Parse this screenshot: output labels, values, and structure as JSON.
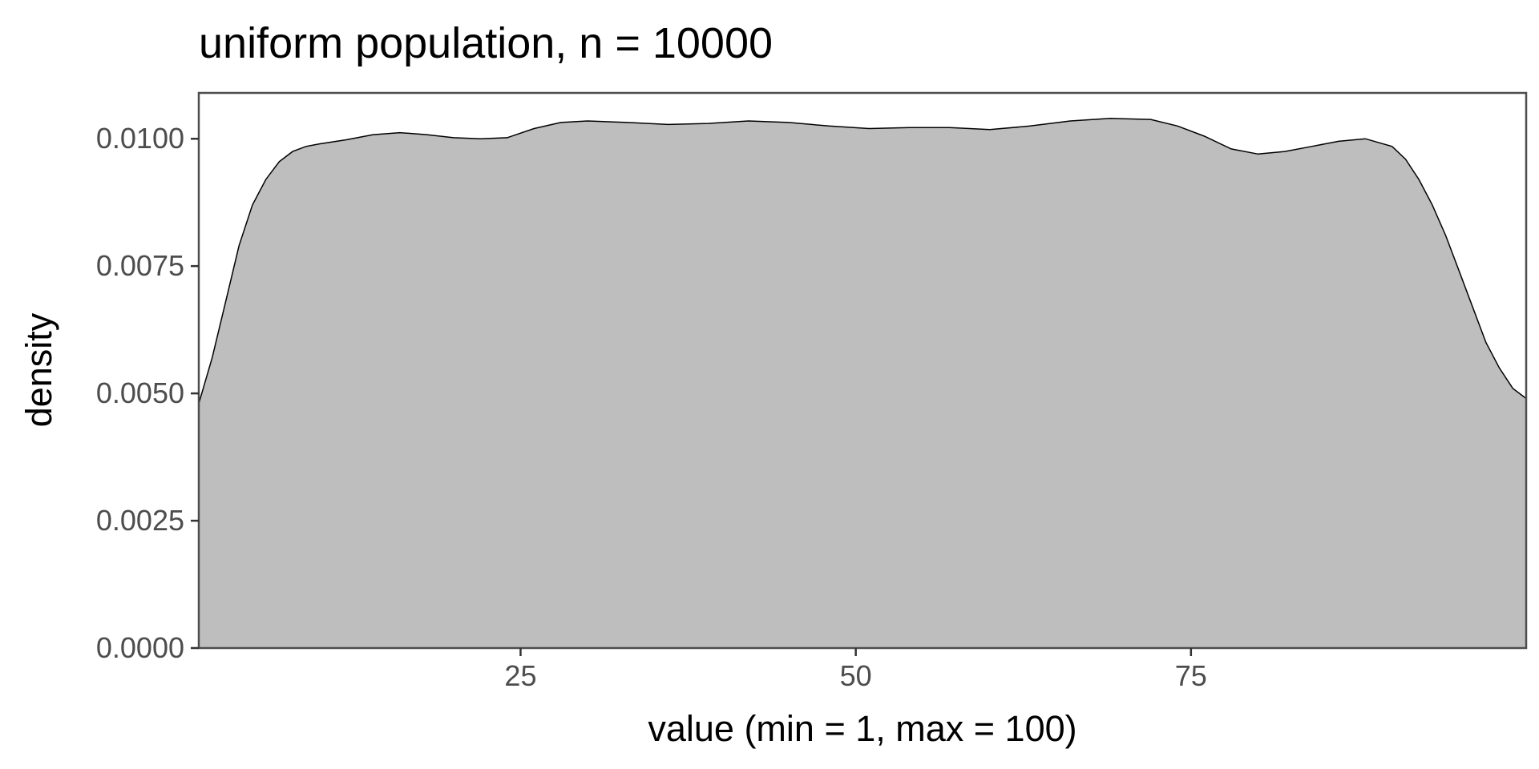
{
  "chart_data": {
    "type": "area",
    "title": "uniform population, n = 10000",
    "xlabel": "value (min = 1, max = 100)",
    "ylabel": "density",
    "xlim": [
      1,
      100
    ],
    "ylim": [
      0,
      0.0109
    ],
    "x_ticks": [
      25,
      50,
      75
    ],
    "x_tick_labels": [
      "25",
      "50",
      "75"
    ],
    "y_ticks": [
      0,
      0.0025,
      0.005,
      0.0075,
      0.01
    ],
    "y_tick_labels": [
      "0.0000",
      "0.0025",
      "0.0050",
      "0.0075",
      "0.0100"
    ],
    "grid": false,
    "legend": "none",
    "fill_color": "#bebebe",
    "line_color": "#000000",
    "series": [
      {
        "x": [
          1,
          2,
          3,
          4,
          5,
          6,
          7,
          8,
          9,
          10,
          12,
          14,
          16,
          18,
          20,
          22,
          24,
          26,
          28,
          30,
          33,
          36,
          39,
          42,
          45,
          48,
          51,
          54,
          57,
          60,
          63,
          66,
          69,
          72,
          74,
          76,
          78,
          80,
          82,
          84,
          86,
          88,
          90,
          91,
          92,
          93,
          94,
          95,
          96,
          97,
          98,
          99,
          100
        ],
        "values": [
          0.0048,
          0.0057,
          0.0068,
          0.0079,
          0.0087,
          0.0092,
          0.00955,
          0.00975,
          0.00985,
          0.0099,
          0.00998,
          0.01008,
          0.01012,
          0.01008,
          0.01002,
          0.01,
          0.01002,
          0.0102,
          0.01032,
          0.01035,
          0.01032,
          0.01028,
          0.0103,
          0.01035,
          0.01032,
          0.01025,
          0.0102,
          0.01022,
          0.01022,
          0.01018,
          0.01025,
          0.01035,
          0.0104,
          0.01038,
          0.01025,
          0.01005,
          0.0098,
          0.0097,
          0.00975,
          0.00985,
          0.00995,
          0.01,
          0.00985,
          0.0096,
          0.0092,
          0.0087,
          0.0081,
          0.0074,
          0.0067,
          0.006,
          0.0055,
          0.0051,
          0.0049
        ]
      }
    ]
  }
}
